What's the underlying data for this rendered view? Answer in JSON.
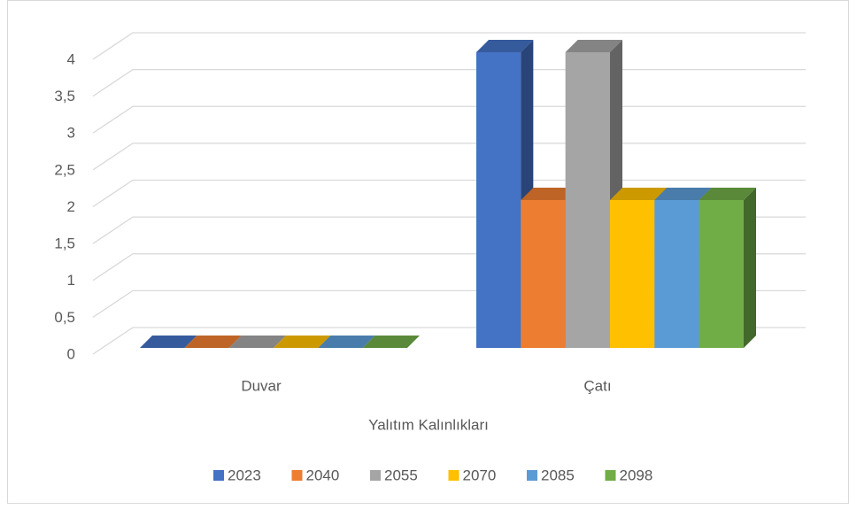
{
  "chart_data": {
    "type": "bar3d",
    "categories": [
      "Duvar",
      "Çatı"
    ],
    "x_label": "Yalıtım Kalınlıkları",
    "series": [
      {
        "name": "2023",
        "color": "#4472c4",
        "values": [
          0,
          4
        ]
      },
      {
        "name": "2040",
        "color": "#ed7d31",
        "values": [
          0,
          2
        ]
      },
      {
        "name": "2055",
        "color": "#a5a5a5",
        "values": [
          0,
          4
        ]
      },
      {
        "name": "2070",
        "color": "#ffc000",
        "values": [
          0,
          2
        ]
      },
      {
        "name": "2085",
        "color": "#5b9bd5",
        "values": [
          0,
          2
        ]
      },
      {
        "name": "2098",
        "color": "#70ad47",
        "values": [
          0,
          2
        ]
      }
    ],
    "ylim": [
      0,
      4
    ],
    "yticks": [
      0,
      {
        "value": 0.5,
        "label": "0,5"
      },
      1,
      {
        "value": 1.5,
        "label": "1,5"
      },
      2,
      {
        "value": 2.5,
        "label": "2,5"
      },
      3,
      {
        "value": 3.5,
        "label": "3,5"
      },
      4
    ],
    "grid": true,
    "legend": "bottom"
  }
}
